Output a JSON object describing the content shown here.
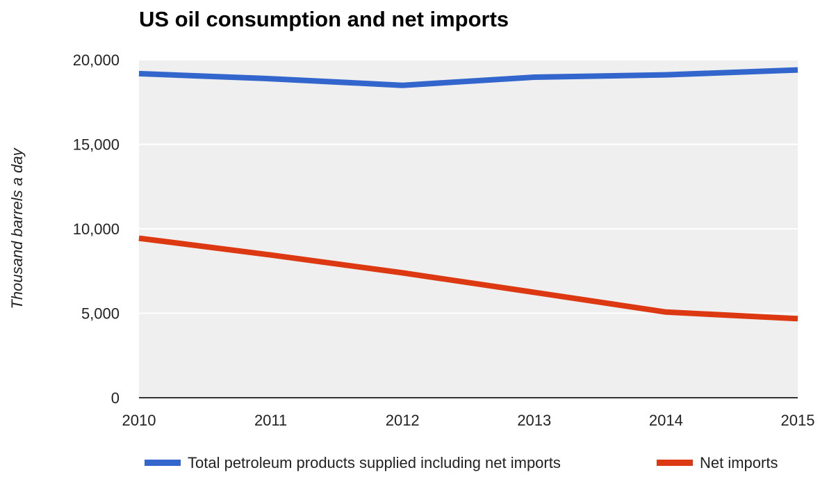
{
  "chart_data": {
    "type": "line",
    "title": "US oil consumption and net imports",
    "xlabel": "",
    "ylabel": "Thousand barrels a day",
    "x": [
      "2010",
      "2011",
      "2012",
      "2013",
      "2014",
      "2015"
    ],
    "ylim": [
      0,
      20000
    ],
    "yticks": [
      0,
      5000,
      10000,
      15000,
      20000
    ],
    "ytick_labels": [
      "0",
      "5,000",
      "10,000",
      "15,000",
      "20,000"
    ],
    "grid": true,
    "legend_position": "bottom",
    "series": [
      {
        "name": "Total petroleum products supplied including net imports",
        "color": "#3366cc",
        "values": [
          19180,
          18880,
          18490,
          18970,
          19110,
          19400
        ]
      },
      {
        "name": "Net imports",
        "color": "#dc3912",
        "values": [
          9440,
          8450,
          7390,
          6240,
          5070,
          4680
        ]
      }
    ]
  }
}
